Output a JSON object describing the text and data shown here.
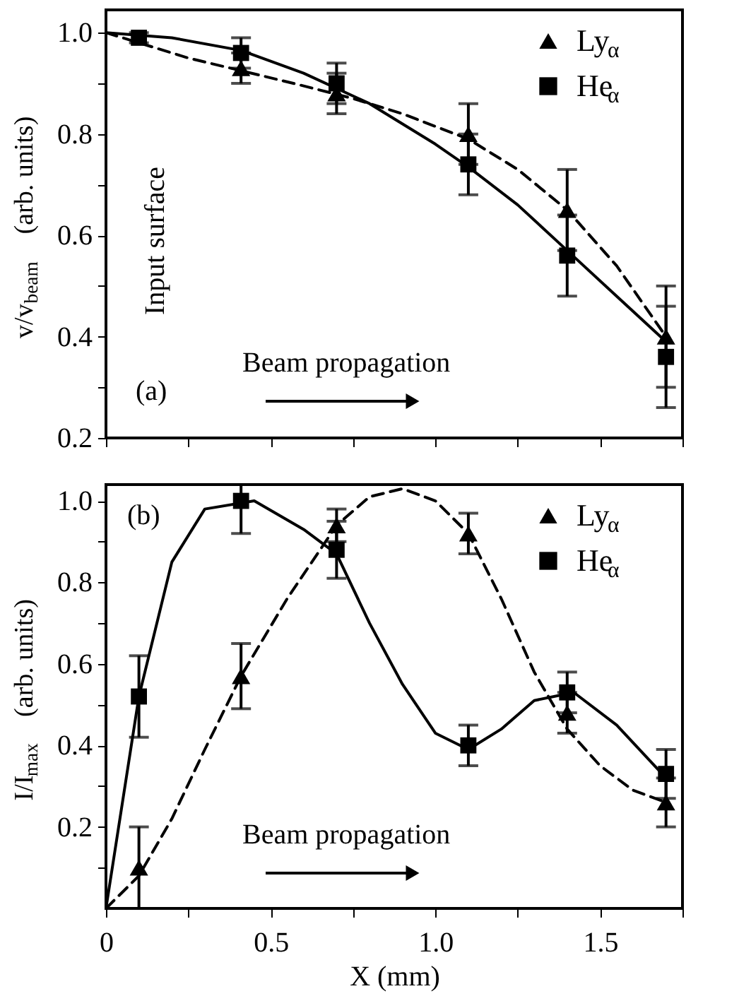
{
  "chart_data": [
    {
      "type": "scatter",
      "ylabel": "v/v$_{beam}$  (arb. units)",
      "xlim": [
        0,
        1.75
      ],
      "ylim": [
        0.2,
        1.045
      ],
      "xticks": [
        {
          "value": 0,
          "label": null
        },
        {
          "value": 0.25,
          "label": null
        },
        {
          "value": 0.5,
          "label": null
        },
        {
          "value": 0.75,
          "label": null
        },
        {
          "value": 1,
          "label": null
        },
        {
          "value": 1.25,
          "label": null
        },
        {
          "value": 1.5,
          "label": null
        },
        {
          "value": 1.75,
          "label": null
        }
      ],
      "yticks": [
        0.2,
        {
          "value": 0.3,
          "label": null
        },
        0.4,
        {
          "value": 0.5,
          "label": null
        },
        0.6,
        {
          "value": 0.7,
          "label": null
        },
        0.8,
        {
          "value": 0.9,
          "label": null
        },
        {
          "value": 1,
          "label": "1.0"
        }
      ],
      "tick_labels": "y",
      "grid": false,
      "legend": "top right",
      "annotations": [
        "Input surface",
        "(a)",
        "Beam propagation"
      ],
      "series": [
        {
          "name": "Ly$_{α}$",
          "marker": "triangle",
          "color": "#000000",
          "x": [
            0.41,
            0.7,
            1.1,
            1.4,
            1.7
          ],
          "values": [
            0.93,
            0.88,
            0.8,
            0.65,
            0.4
          ],
          "errors": [
            0.03,
            0.04,
            0.06,
            0.08,
            0.1
          ]
        },
        {
          "name": "He$_{α}$",
          "marker": "square",
          "color": "#000000",
          "x": [
            0.1,
            0.41,
            0.7,
            1.1,
            1.4,
            1.7
          ],
          "values": [
            0.99,
            0.96,
            0.9,
            0.74,
            0.56,
            0.36
          ],
          "errors": [
            0.01,
            0.03,
            0.04,
            0.06,
            0.08,
            0.1
          ]
        },
        {
          "type": "line",
          "line_style": "dashed",
          "color": "#000000",
          "x": [
            0,
            0.1,
            0.25,
            0.41,
            0.6,
            0.75,
            0.9,
            1.1,
            1.25,
            1.4,
            1.55,
            1.7
          ],
          "values": [
            1.0,
            0.98,
            0.95,
            0.925,
            0.895,
            0.87,
            0.84,
            0.79,
            0.73,
            0.65,
            0.54,
            0.4
          ]
        },
        {
          "type": "line",
          "line_style": "solid",
          "color": "#000000",
          "x": [
            0,
            0.2,
            0.41,
            0.6,
            0.8,
            1.0,
            1.1,
            1.25,
            1.4,
            1.55,
            1.7
          ],
          "values": [
            1.0,
            0.99,
            0.965,
            0.92,
            0.86,
            0.78,
            0.735,
            0.66,
            0.57,
            0.48,
            0.39
          ]
        }
      ]
    },
    {
      "type": "scatter",
      "xlabel": "X  (mm)",
      "ylabel": "I/I$_{max}$  (arb. units)",
      "xlim": [
        0,
        1.75
      ],
      "ylim": [
        0,
        1.04
      ],
      "xticks": [
        0,
        {
          "value": 0.25,
          "label": null
        },
        0.5,
        {
          "value": 0.75,
          "label": null
        },
        {
          "value": 1,
          "label": "1.0"
        },
        {
          "value": 1.25,
          "label": null
        },
        1.5,
        {
          "value": 1.75,
          "label": null
        }
      ],
      "yticks": [
        {
          "value": 0.1,
          "label": null
        },
        0.2,
        {
          "value": 0.3,
          "label": null
        },
        0.4,
        {
          "value": 0.5,
          "label": null
        },
        0.6,
        {
          "value": 0.7,
          "label": null
        },
        0.8,
        {
          "value": 0.9,
          "label": null
        },
        {
          "value": 1,
          "label": "1.0"
        }
      ],
      "grid": false,
      "legend": "top right",
      "annotations": [
        "(b)",
        "Beam propagation"
      ],
      "series": [
        {
          "name": "Ly$_{α}$",
          "marker": "triangle",
          "color": "#000000",
          "x": [
            0.1,
            0.41,
            0.7,
            1.1,
            1.4,
            1.7
          ],
          "values": [
            0.1,
            0.57,
            0.94,
            0.92,
            0.48,
            0.26
          ],
          "errors": [
            0.1,
            0.08,
            0.04,
            0.05,
            0.05,
            0.06
          ]
        },
        {
          "name": "He$_{α}$",
          "marker": "square",
          "color": "#000000",
          "x": [
            0.1,
            0.41,
            0.7,
            1.1,
            1.4,
            1.7
          ],
          "values": [
            0.52,
            1.0,
            0.88,
            0.4,
            0.53,
            0.33
          ],
          "errors": [
            0.1,
            [
              0.92,
              1.04
            ],
            0.07,
            0.05,
            0.05,
            0.06
          ]
        },
        {
          "type": "line",
          "line_style": "dashed",
          "color": "#000000",
          "x": [
            0,
            0.1,
            0.2,
            0.3,
            0.41,
            0.55,
            0.7,
            0.8,
            0.9,
            1.0,
            1.1,
            1.2,
            1.3,
            1.4,
            1.5,
            1.6,
            1.7
          ],
          "values": [
            0,
            0.08,
            0.22,
            0.39,
            0.57,
            0.76,
            0.94,
            1.01,
            1.03,
            1.0,
            0.92,
            0.76,
            0.58,
            0.44,
            0.35,
            0.29,
            0.26
          ]
        },
        {
          "type": "line",
          "line_style": "solid",
          "color": "#000000",
          "x": [
            0,
            0.1,
            0.2,
            0.3,
            0.45,
            0.6,
            0.7,
            0.8,
            0.9,
            1.0,
            1.1,
            1.2,
            1.3,
            1.42,
            1.55,
            1.7
          ],
          "values": [
            0,
            0.52,
            0.85,
            0.98,
            1.0,
            0.93,
            0.87,
            0.7,
            0.55,
            0.43,
            0.39,
            0.44,
            0.51,
            0.53,
            0.45,
            0.32
          ]
        }
      ]
    }
  ]
}
